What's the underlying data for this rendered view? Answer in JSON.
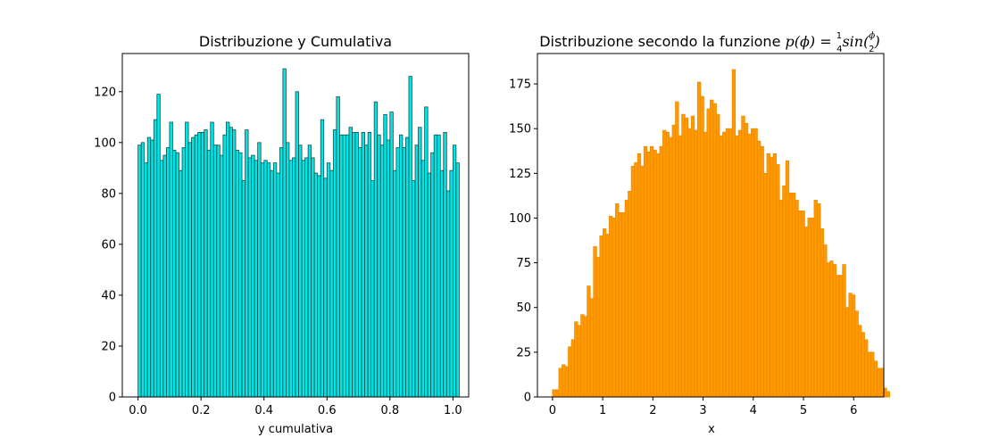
{
  "chart_data": [
    {
      "type": "bar",
      "title": "Distribuzione y Cumulativa",
      "xlabel": "y cumulativa",
      "ylabel": "",
      "xlim": [
        -0.05,
        1.05
      ],
      "ylim": [
        0,
        135
      ],
      "xticks": [
        0.0,
        0.2,
        0.4,
        0.6,
        0.8,
        1.0
      ],
      "xtick_labels": [
        "0.0",
        "0.2",
        "0.4",
        "0.6",
        "0.8",
        "1.0"
      ],
      "yticks": [
        0,
        20,
        40,
        60,
        80,
        100,
        120
      ],
      "ytick_labels": [
        "0",
        "20",
        "40",
        "60",
        "80",
        "100",
        "120"
      ],
      "bin_start": 0.0,
      "bin_width": 0.01,
      "values": [
        99,
        100,
        92,
        102,
        101,
        109,
        119,
        93,
        95,
        98,
        108,
        97,
        96,
        89,
        98,
        108,
        100,
        102,
        103,
        104,
        104,
        105,
        97,
        108,
        99,
        99,
        95,
        103,
        108,
        106,
        105,
        97,
        96,
        85,
        105,
        94,
        95,
        93,
        100,
        92,
        93,
        92,
        89,
        92,
        88,
        98,
        129,
        100,
        93,
        94,
        120,
        99,
        93,
        94,
        99,
        94,
        88,
        87,
        109,
        86,
        92,
        89,
        105,
        118,
        103,
        103,
        103,
        106,
        104,
        104,
        98,
        104,
        99,
        104,
        85,
        116,
        103,
        99,
        111,
        101,
        112,
        89,
        98,
        103,
        98,
        102,
        126,
        85,
        99,
        106,
        93,
        114,
        88,
        96,
        103,
        103,
        89,
        104,
        81,
        89,
        99,
        92
      ],
      "bar_color": "#00e5e5",
      "edge_color": "#1a4d4d",
      "grid": false
    },
    {
      "type": "bar",
      "title_text": "Distribuzione secondo la funzione ",
      "title_math_lhs": "p(ϕ) = ",
      "title_math_fn": "sin(",
      "title_math_close": ")",
      "frac1_num": "1",
      "frac1_den": "4",
      "frac2_num": "ϕ",
      "frac2_den": "2",
      "xlabel": "x",
      "ylabel": "",
      "xlim": [
        -0.3,
        6.6
      ],
      "ylim": [
        0,
        192
      ],
      "xticks": [
        0,
        1,
        2,
        3,
        4,
        5,
        6
      ],
      "xtick_labels": [
        "0",
        "1",
        "2",
        "3",
        "4",
        "5",
        "6"
      ],
      "yticks": [
        0,
        25,
        50,
        75,
        100,
        125,
        150,
        175
      ],
      "ytick_labels": [
        "0",
        "25",
        "50",
        "75",
        "100",
        "125",
        "150",
        "175"
      ],
      "bin_start": 0.0,
      "bin_width": 0.0628,
      "values": [
        4,
        4,
        16,
        18,
        17,
        28,
        32,
        42,
        40,
        46,
        45,
        62,
        55,
        84,
        78,
        90,
        94,
        91,
        101,
        100,
        108,
        103,
        103,
        110,
        115,
        129,
        131,
        136,
        129,
        140,
        137,
        140,
        138,
        136,
        140,
        149,
        148,
        145,
        152,
        165,
        146,
        158,
        156,
        150,
        157,
        149,
        176,
        168,
        148,
        161,
        166,
        164,
        158,
        146,
        148,
        150,
        150,
        183,
        146,
        149,
        157,
        153,
        147,
        150,
        150,
        143,
        140,
        125,
        136,
        134,
        136,
        130,
        110,
        118,
        132,
        114,
        114,
        110,
        104,
        104,
        95,
        100,
        100,
        110,
        108,
        94,
        85,
        75,
        76,
        74,
        68,
        68,
        74,
        50,
        58,
        57,
        48,
        40,
        36,
        32,
        25,
        25,
        20,
        16,
        16,
        5,
        3
      ],
      "bar_color": "#ff9900",
      "edge_color": "#ee8a00",
      "grid": false
    }
  ]
}
